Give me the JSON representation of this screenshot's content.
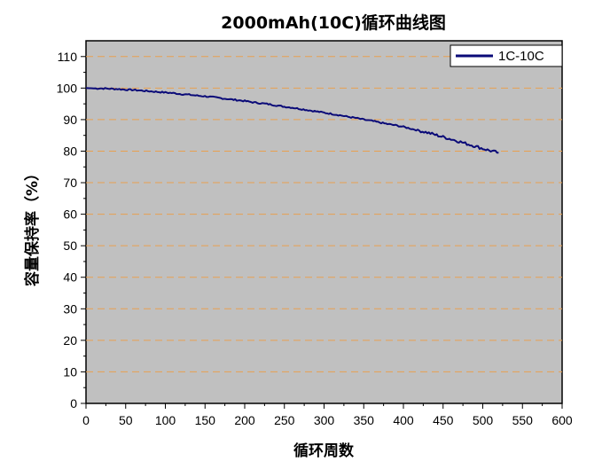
{
  "chart_data": {
    "type": "line",
    "title": "2000mAh(10C)循环曲线图",
    "xlabel": "循环周数",
    "ylabel": "容量保持率（%）",
    "xlim": [
      0,
      600
    ],
    "ylim": [
      0,
      115
    ],
    "x_ticks": [
      0,
      50,
      100,
      150,
      200,
      250,
      300,
      350,
      400,
      450,
      500,
      550,
      600
    ],
    "y_ticks": [
      0,
      10,
      20,
      30,
      40,
      50,
      60,
      70,
      80,
      90,
      100,
      110
    ],
    "grid": "horizontal dashed",
    "background": "#c0c0c0",
    "grid_color": "#e8a050",
    "legend_position": "top-right",
    "series": [
      {
        "name": "1C-10C",
        "color": "#0a0a78",
        "x": [
          0,
          10,
          20,
          30,
          40,
          50,
          60,
          70,
          80,
          90,
          100,
          110,
          120,
          130,
          140,
          150,
          160,
          170,
          180,
          190,
          200,
          210,
          220,
          230,
          240,
          250,
          260,
          270,
          280,
          290,
          300,
          310,
          320,
          330,
          340,
          350,
          360,
          370,
          380,
          390,
          400,
          410,
          420,
          430,
          440,
          450,
          460,
          470,
          480,
          490,
          500,
          510,
          520
        ],
        "y": [
          100.0,
          99.9,
          99.9,
          99.8,
          99.7,
          99.5,
          99.4,
          99.2,
          99.0,
          98.8,
          98.6,
          98.4,
          98.1,
          97.9,
          97.6,
          97.4,
          97.1,
          96.8,
          96.5,
          96.2,
          95.9,
          95.5,
          95.2,
          94.9,
          94.5,
          94.1,
          93.8,
          93.4,
          93.0,
          92.6,
          92.2,
          91.8,
          91.4,
          90.9,
          90.5,
          90.0,
          89.6,
          89.1,
          88.6,
          88.2,
          87.7,
          87.1,
          86.5,
          85.9,
          85.2,
          84.5,
          83.8,
          83.1,
          82.3,
          81.6,
          80.8,
          80.1,
          79.5
        ]
      }
    ]
  }
}
